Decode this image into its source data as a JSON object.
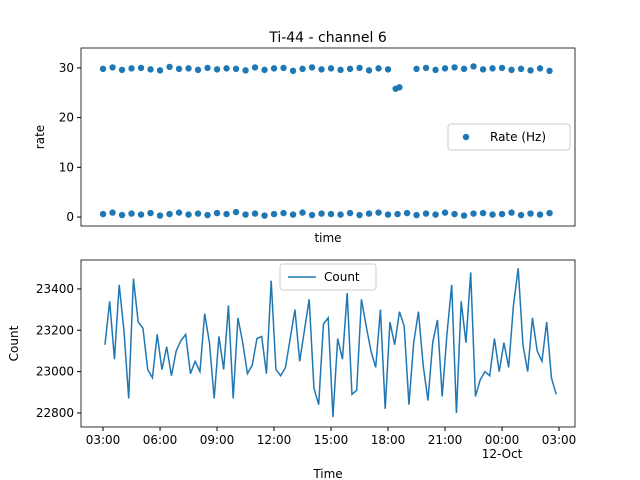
{
  "chart_data": [
    {
      "type": "scatter",
      "title": "Ti-44 - channel 6",
      "x_label": "time",
      "y_label": "rate",
      "xlim": [
        1.84,
        27.84
      ],
      "ylim": [
        -1.8,
        34.0
      ],
      "yticks": [
        0,
        10,
        20,
        30
      ],
      "legend": "right",
      "series": [
        {
          "name": "Rate (Hz)",
          "color": "#1f77b4",
          "x": [
            3,
            3.5,
            4,
            4.5,
            5,
            5.5,
            6,
            6.5,
            7,
            7.5,
            8,
            8.5,
            9,
            9.5,
            10,
            10.5,
            11,
            11.5,
            12,
            12.5,
            13,
            13.5,
            14,
            14.5,
            15,
            15.5,
            16,
            16.5,
            17,
            17.5,
            18,
            19.5,
            20,
            20.5,
            21,
            21.5,
            22,
            22.5,
            23,
            23.5,
            24,
            24.5,
            25,
            25.5,
            26,
            26.5,
            3,
            3.5,
            4,
            4.5,
            5,
            5.5,
            6,
            6.5,
            7,
            7.5,
            8,
            8.5,
            9,
            9.5,
            10,
            10.5,
            11,
            11.5,
            12,
            12.5,
            13,
            13.5,
            14,
            14.5,
            15,
            15.5,
            16,
            16.5,
            17,
            17.5,
            18,
            18.5,
            19,
            19.5,
            20,
            20.5,
            21,
            21.5,
            22,
            22.5,
            23,
            23.5,
            24,
            24.5,
            25,
            25.5,
            26,
            26.5,
            18.4,
            18.6
          ],
          "values": [
            29.8,
            30.1,
            29.6,
            29.9,
            30.0,
            29.7,
            29.5,
            30.2,
            29.8,
            29.9,
            29.6,
            30.0,
            29.7,
            29.9,
            29.8,
            29.5,
            30.1,
            29.6,
            29.9,
            30.0,
            29.4,
            29.8,
            30.1,
            29.7,
            29.9,
            29.6,
            29.8,
            30.0,
            29.5,
            29.9,
            29.7,
            29.8,
            30.0,
            29.6,
            29.9,
            30.1,
            29.8,
            30.3,
            29.7,
            29.9,
            30.0,
            29.6,
            29.8,
            29.5,
            29.9,
            29.4,
            0.6,
            0.9,
            0.4,
            0.7,
            0.5,
            0.8,
            0.3,
            0.6,
            0.9,
            0.5,
            0.7,
            0.4,
            0.8,
            0.6,
            1.0,
            0.5,
            0.7,
            0.3,
            0.6,
            0.8,
            0.5,
            0.9,
            0.4,
            0.7,
            0.6,
            0.5,
            0.8,
            0.4,
            0.7,
            0.9,
            0.5,
            0.6,
            0.8,
            0.4,
            0.7,
            0.5,
            0.9,
            0.6,
            0.3,
            0.7,
            0.8,
            0.5,
            0.6,
            0.9,
            0.4,
            0.7,
            0.5,
            0.8,
            25.8,
            26.1
          ]
        }
      ]
    },
    {
      "type": "line",
      "x_label": "Time",
      "y_label": "Count",
      "xlim": [
        1.84,
        27.84
      ],
      "ylim": [
        22732,
        23540
      ],
      "yticks": [
        22800,
        23000,
        23200,
        23400
      ],
      "legend": "upper center",
      "xticks": [
        {
          "value": 3,
          "label": "03:00"
        },
        {
          "value": 6,
          "label": "06:00"
        },
        {
          "value": 9,
          "label": "09:00"
        },
        {
          "value": 12,
          "label": "12:00"
        },
        {
          "value": 15,
          "label": "15:00"
        },
        {
          "value": 18,
          "label": "18:00"
        },
        {
          "value": 21,
          "label": "21:00"
        },
        {
          "value": 24,
          "label": "00:00\n12-Oct"
        },
        {
          "value": 27,
          "label": "03:00"
        }
      ],
      "series": [
        {
          "name": "Count",
          "color": "#1f77b4",
          "x": [
            3.1,
            3.35,
            3.6,
            3.85,
            4.1,
            4.35,
            4.6,
            4.85,
            5.1,
            5.35,
            5.6,
            5.85,
            6.1,
            6.35,
            6.6,
            6.85,
            7.1,
            7.35,
            7.6,
            7.85,
            8.1,
            8.35,
            8.6,
            8.85,
            9.1,
            9.35,
            9.6,
            9.85,
            10.1,
            10.35,
            10.6,
            10.85,
            11.1,
            11.35,
            11.6,
            11.85,
            12.1,
            12.35,
            12.6,
            12.85,
            13.1,
            13.35,
            13.6,
            13.85,
            14.1,
            14.35,
            14.6,
            14.85,
            15.1,
            15.35,
            15.6,
            15.85,
            16.1,
            16.35,
            16.6,
            16.85,
            17.1,
            17.35,
            17.6,
            17.85,
            18.1,
            18.35,
            18.6,
            18.85,
            19.1,
            19.35,
            19.6,
            19.85,
            20.1,
            20.35,
            20.6,
            20.85,
            21.1,
            21.35,
            21.6,
            21.85,
            22.1,
            22.35,
            22.6,
            22.85,
            23.1,
            23.35,
            23.6,
            23.85,
            24.1,
            24.35,
            24.6,
            24.85,
            25.1,
            25.35,
            25.6,
            25.85,
            26.1,
            26.35,
            26.6,
            26.85
          ],
          "values": [
            23130,
            23340,
            23060,
            23420,
            23200,
            22870,
            23450,
            23240,
            23210,
            23010,
            22970,
            23180,
            23010,
            23120,
            22980,
            23100,
            23150,
            23180,
            22990,
            23050,
            23000,
            23280,
            23140,
            22870,
            23170,
            23010,
            23320,
            22870,
            23260,
            23140,
            22990,
            23030,
            23160,
            23170,
            22990,
            23440,
            23010,
            22980,
            23020,
            23160,
            23300,
            23050,
            23200,
            23350,
            22920,
            22840,
            23230,
            23260,
            22780,
            23160,
            23060,
            23380,
            22890,
            22910,
            23350,
            23220,
            23100,
            23020,
            23300,
            22820,
            23240,
            23130,
            23290,
            23220,
            22840,
            23140,
            23290,
            23030,
            22860,
            23140,
            23250,
            22880,
            23180,
            23420,
            22800,
            23340,
            23140,
            23480,
            22880,
            22960,
            23000,
            22980,
            23160,
            23000,
            23140,
            23020,
            23320,
            23500,
            23130,
            23000,
            23260,
            23100,
            23050,
            23240,
            22970,
            22890
          ]
        }
      ]
    }
  ]
}
